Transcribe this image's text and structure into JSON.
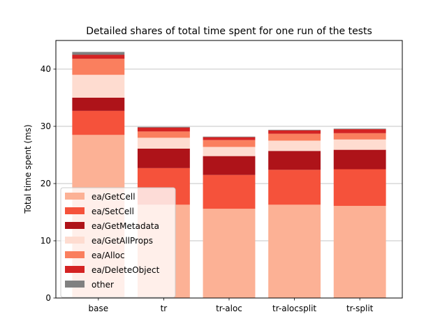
{
  "chart_data": {
    "type": "bar",
    "stacked": true,
    "title": "Detailed shares of total time spent for one run of the tests",
    "xlabel": "",
    "ylabel": "Total time spent (ms)",
    "ylim": [
      0,
      45
    ],
    "yticks": [
      0,
      10,
      20,
      30,
      40
    ],
    "grid": "y",
    "legend_position": "lower-left",
    "categories": [
      "base",
      "tr",
      "tr-aloc",
      "tr-alocsplit",
      "tr-split"
    ],
    "series": [
      {
        "name": "ea/GetCell",
        "color": "#fcb195",
        "values": [
          28.5,
          16.3,
          15.6,
          16.3,
          16.1
        ]
      },
      {
        "name": "ea/SetCell",
        "color": "#f5523b",
        "values": [
          4.2,
          6.4,
          5.9,
          6.1,
          6.4
        ]
      },
      {
        "name": "ea/GetMetadata",
        "color": "#ae1319",
        "values": [
          2.3,
          3.4,
          3.3,
          3.3,
          3.4
        ]
      },
      {
        "name": "ea/GetAllProps",
        "color": "#fedcd0",
        "values": [
          4.0,
          1.9,
          1.6,
          1.8,
          1.8
        ]
      },
      {
        "name": "ea/Alloc",
        "color": "#fa7f5e",
        "values": [
          2.8,
          1.1,
          1.2,
          1.2,
          1.1
        ]
      },
      {
        "name": "ea/DeleteObject",
        "color": "#d42323",
        "values": [
          0.7,
          0.7,
          0.5,
          0.6,
          0.7
        ]
      },
      {
        "name": "other",
        "color": "#808080",
        "values": [
          0.5,
          0.1,
          0.1,
          0.1,
          0.1
        ]
      }
    ]
  }
}
